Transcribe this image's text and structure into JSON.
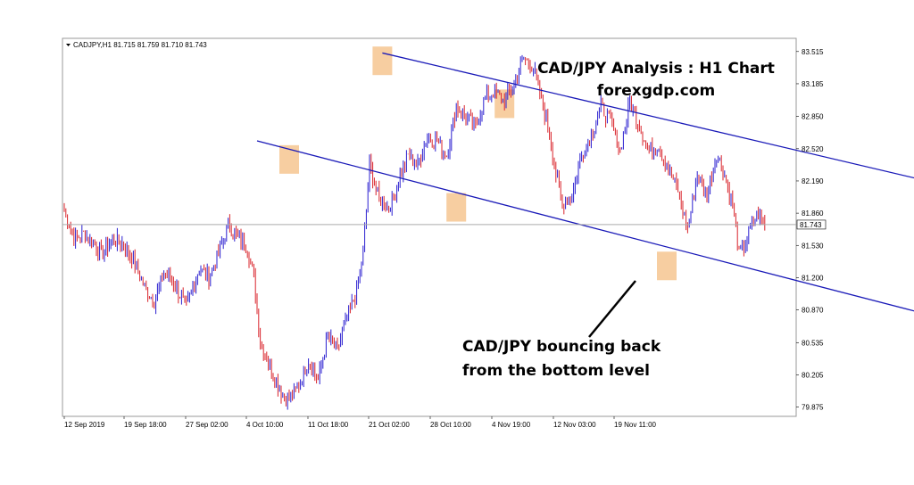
{
  "chart_data": {
    "type": "candlestick",
    "symbol_header": "CADJPY,H1  81.715 81.759 81.710 81.743",
    "title": "CAD/JPY Analysis : H1 Chart",
    "subtitle": "forexgdp.com",
    "annotation": "CAD/JPY bouncing back from the bottom level",
    "annotation_lines": [
      "CAD/JPY bouncing back",
      "from the bottom level"
    ],
    "y_ticks": [
      "83.515",
      "83.185",
      "82.850",
      "82.520",
      "82.190",
      "81.860",
      "81.530",
      "81.200",
      "80.870",
      "80.535",
      "80.205",
      "79.875"
    ],
    "y_tick_values": [
      83.515,
      83.185,
      82.85,
      82.52,
      82.19,
      81.86,
      81.53,
      81.2,
      80.87,
      80.535,
      80.205,
      79.875
    ],
    "x_ticks": [
      "12 Sep 2019",
      "19 Sep 18:00",
      "27 Sep 02:00",
      "4 Oct 10:00",
      "11 Oct 18:00",
      "21 Oct 02:00",
      "28 Oct 10:00",
      "4 Nov 19:00",
      "12 Nov 03:00",
      "19 Nov 11:00"
    ],
    "ylim": [
      79.78,
      83.65
    ],
    "current_price": 81.743,
    "current_price_label": "81.743",
    "price_path": [
      [
        0,
        81.88
      ],
      [
        6,
        81.6
      ],
      [
        12,
        81.65
      ],
      [
        18,
        81.55
      ],
      [
        24,
        81.45
      ],
      [
        30,
        81.6
      ],
      [
        36,
        81.55
      ],
      [
        44,
        81.35
      ],
      [
        50,
        81.1
      ],
      [
        56,
        80.95
      ],
      [
        62,
        81.25
      ],
      [
        68,
        81.15
      ],
      [
        76,
        80.9
      ],
      [
        84,
        81.3
      ],
      [
        90,
        81.2
      ],
      [
        96,
        81.45
      ],
      [
        102,
        81.75
      ],
      [
        108,
        81.6
      ],
      [
        114,
        81.5
      ],
      [
        118,
        81.2
      ],
      [
        122,
        80.55
      ],
      [
        128,
        80.3
      ],
      [
        134,
        80.05
      ],
      [
        140,
        79.95
      ],
      [
        146,
        80.1
      ],
      [
        152,
        80.35
      ],
      [
        158,
        80.15
      ],
      [
        164,
        80.6
      ],
      [
        170,
        80.45
      ],
      [
        176,
        80.8
      ],
      [
        182,
        81.05
      ],
      [
        186,
        81.45
      ],
      [
        190,
        82.35
      ],
      [
        196,
        82.0
      ],
      [
        202,
        81.9
      ],
      [
        208,
        82.2
      ],
      [
        214,
        82.45
      ],
      [
        220,
        82.35
      ],
      [
        226,
        82.65
      ],
      [
        232,
        82.6
      ],
      [
        238,
        82.45
      ],
      [
        244,
        82.95
      ],
      [
        250,
        82.85
      ],
      [
        256,
        82.75
      ],
      [
        262,
        83.05
      ],
      [
        268,
        83.1
      ],
      [
        274,
        83.0
      ],
      [
        280,
        83.2
      ],
      [
        286,
        83.45
      ],
      [
        292,
        83.35
      ],
      [
        298,
        82.95
      ],
      [
        302,
        82.7
      ],
      [
        306,
        82.25
      ],
      [
        310,
        81.95
      ],
      [
        316,
        82.05
      ],
      [
        322,
        82.45
      ],
      [
        328,
        82.65
      ],
      [
        334,
        82.95
      ],
      [
        340,
        82.8
      ],
      [
        346,
        82.5
      ],
      [
        352,
        83.0
      ],
      [
        358,
        82.75
      ],
      [
        364,
        82.5
      ],
      [
        370,
        82.55
      ],
      [
        376,
        82.3
      ],
      [
        382,
        82.1
      ],
      [
        388,
        81.7
      ],
      [
        394,
        82.25
      ],
      [
        400,
        82.05
      ],
      [
        406,
        82.45
      ],
      [
        410,
        82.3
      ],
      [
        416,
        81.95
      ],
      [
        420,
        81.45
      ],
      [
        424,
        81.55
      ],
      [
        428,
        81.75
      ],
      [
        432,
        81.85
      ],
      [
        436,
        81.75
      ]
    ],
    "channel_upper": [
      [
        198,
        83.5
      ],
      [
        625,
        81.85
      ]
    ],
    "channel_lower": [
      [
        120,
        82.6
      ],
      [
        625,
        80.45
      ]
    ],
    "highlights": [
      {
        "x": 140,
        "price": 82.41
      },
      {
        "x": 198,
        "price": 83.42
      },
      {
        "x": 244,
        "price": 81.92
      },
      {
        "x": 274,
        "price": 82.98
      },
      {
        "x": 375,
        "price": 81.32
      }
    ],
    "colors": {
      "bull": "#2b1fd0",
      "bear": "#d8232a",
      "channel": "#1a1ab8",
      "highlight": "#f5c28a",
      "frame": "#999999"
    }
  }
}
